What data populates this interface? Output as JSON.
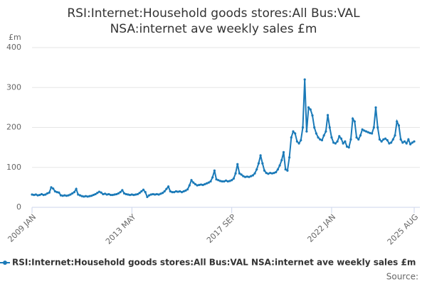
{
  "chart_data": {
    "type": "line",
    "title": [
      "RSI:Internet:Household goods stores:All Bus:VAL",
      "NSA:internet ave weekly sales £m"
    ],
    "y_unit": "£m",
    "categories": [
      "2009 JAN",
      null,
      null,
      null,
      null,
      null,
      null,
      null,
      null,
      null,
      null,
      null,
      null,
      null,
      null,
      null,
      null,
      null,
      null,
      null,
      null,
      null,
      null,
      null,
      null,
      null,
      null,
      null,
      null,
      null,
      null,
      null,
      null,
      null,
      null,
      null,
      null,
      null,
      null,
      null,
      null,
      null,
      null,
      null,
      null,
      null,
      null,
      null,
      null,
      null,
      null,
      null,
      "2013 MAY",
      null,
      null,
      null,
      null,
      null,
      null,
      null,
      null,
      null,
      null,
      null,
      null,
      null,
      null,
      null,
      null,
      null,
      null,
      null,
      null,
      null,
      null,
      null,
      null,
      null,
      null,
      null,
      null,
      null,
      null,
      null,
      null,
      null,
      null,
      null,
      null,
      null,
      null,
      null,
      null,
      null,
      null,
      null,
      null,
      null,
      null,
      null,
      null,
      null,
      null,
      null,
      "2017 SEP",
      null,
      null,
      null,
      null,
      null,
      null,
      null,
      null,
      null,
      null,
      null,
      null,
      null,
      null,
      null,
      null,
      null,
      null,
      null,
      null,
      null,
      null,
      null,
      null,
      null,
      null,
      null,
      null,
      null,
      null,
      null,
      null,
      null,
      null,
      null,
      null,
      null,
      null,
      null,
      null,
      null,
      null,
      null,
      null,
      null,
      null,
      null,
      null,
      null,
      null,
      null,
      "2022 JAN",
      null,
      null,
      null,
      null,
      null,
      null,
      null,
      null,
      null,
      null,
      null,
      null,
      null,
      null,
      null,
      null,
      null,
      null,
      null,
      null,
      null,
      null,
      null,
      null,
      null,
      null,
      null,
      null,
      null,
      null,
      null,
      null,
      null,
      null,
      null,
      null,
      null,
      null,
      null,
      null,
      null,
      null,
      "2025 AUG"
    ],
    "series": [
      {
        "name": "RSI:Internet:Household goods stores:All Bus:VAL NSA:internet ave weekly sales £m",
        "color": "#1b7ab8",
        "values": [
          32,
          31,
          32,
          30,
          31,
          33,
          31,
          32,
          35,
          37,
          50,
          47,
          40,
          38,
          37,
          30,
          29,
          30,
          29,
          30,
          32,
          35,
          38,
          46,
          32,
          30,
          28,
          27,
          28,
          27,
          28,
          29,
          31,
          33,
          36,
          39,
          37,
          33,
          34,
          32,
          33,
          31,
          31,
          32,
          33,
          35,
          38,
          43,
          35,
          33,
          32,
          31,
          32,
          31,
          32,
          33,
          36,
          40,
          44,
          38,
          26,
          30,
          32,
          33,
          32,
          33,
          32,
          34,
          36,
          40,
          46,
          52,
          40,
          38,
          38,
          40,
          39,
          40,
          38,
          40,
          42,
          45,
          55,
          68,
          62,
          58,
          55,
          56,
          57,
          56,
          58,
          60,
          62,
          65,
          75,
          92,
          70,
          68,
          66,
          65,
          65,
          67,
          65,
          66,
          68,
          72,
          85,
          108,
          85,
          82,
          78,
          76,
          77,
          76,
          78,
          80,
          85,
          95,
          110,
          130,
          110,
          92,
          86,
          84,
          86,
          85,
          86,
          88,
          95,
          105,
          118,
          138,
          95,
          92,
          125,
          175,
          190,
          185,
          165,
          160,
          168,
          200,
          320,
          190,
          250,
          245,
          230,
          200,
          185,
          175,
          170,
          168,
          180,
          190,
          231,
          200,
          175,
          162,
          160,
          165,
          178,
          172,
          160,
          165,
          152,
          150,
          170,
          222,
          215,
          175,
          170,
          180,
          195,
          192,
          190,
          188,
          186,
          185,
          200,
          250,
          200,
          170,
          165,
          170,
          172,
          168,
          160,
          162,
          170,
          180,
          215,
          205,
          170,
          162,
          165,
          160,
          170,
          158,
          162,
          165
        ]
      }
    ],
    "ylim": [
      0,
      400
    ],
    "yticks": [
      0,
      100,
      200,
      300,
      400
    ],
    "grid": true,
    "source": "Source:"
  }
}
